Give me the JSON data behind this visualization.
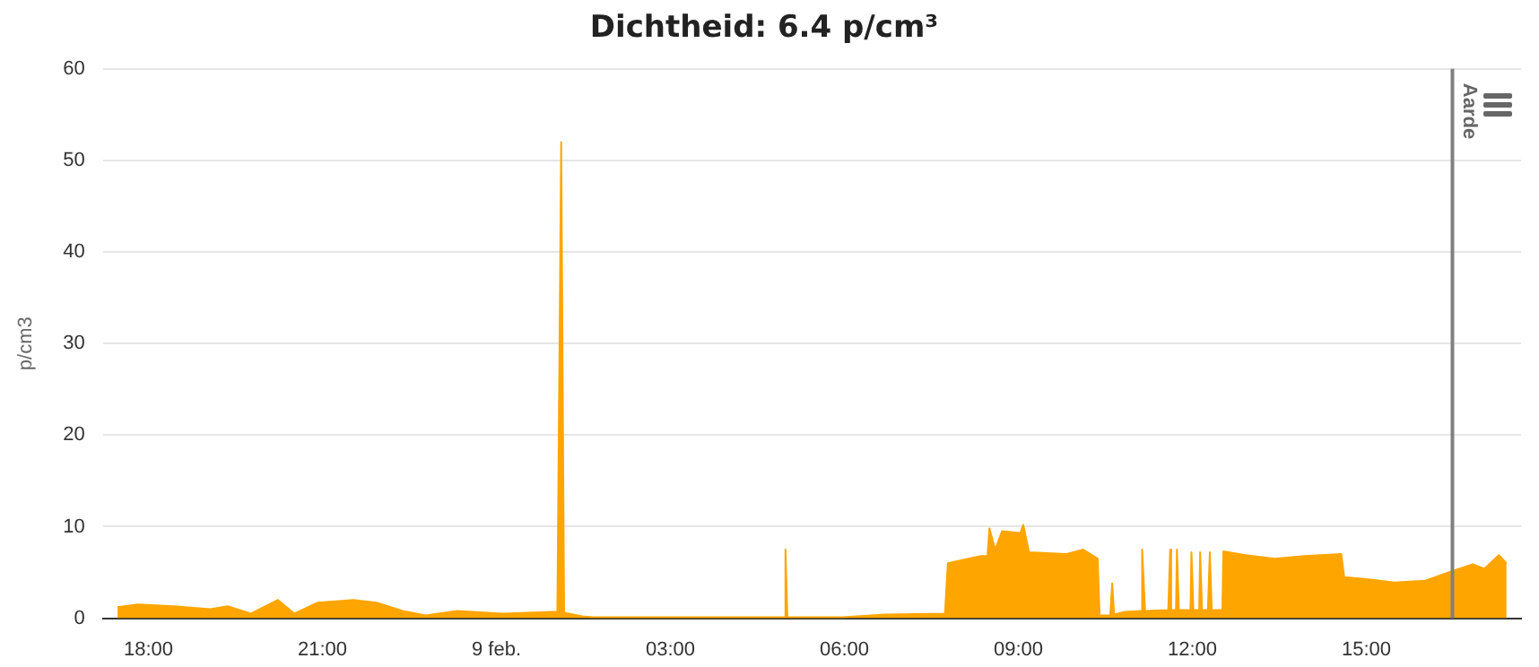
{
  "chart_data": {
    "type": "area",
    "title": "Dichtheid: 6.4 p/cm³",
    "ylabel": "p/cm3",
    "x": [
      "--02-08T17:28",
      "--02-08T17:49",
      "--02-08T18:26",
      "--02-08T19:04",
      "--02-08T19:22",
      "--02-08T19:46",
      "--02-08T20:14",
      "--02-08T20:31",
      "--02-08T20:55",
      "--02-08T21:32",
      "--02-08T21:56",
      "--02-08T22:23",
      "--02-08T22:47",
      "--02-08T23:19",
      "--02-09T00:07",
      "--02-09T00:58",
      "--02-09T01:03",
      "--02-09T01:07",
      "--02-09T01:10",
      "--02-09T01:29",
      "--02-09T01:40",
      "--02-09T02:59",
      "--02-09T04:58",
      "--02-09T04:59",
      "--02-09T05:01",
      "--02-09T05:58",
      "--02-09T06:42",
      "--02-09T07:44",
      "--02-09T07:47",
      "--02-09T08:21",
      "--02-09T08:28",
      "--02-09T08:30",
      "--02-09T08:36",
      "--02-09T08:43",
      "--02-09T09:02",
      "--02-09T09:05",
      "--02-09T09:11",
      "--02-09T09:49",
      "--02-09T10:07",
      "--02-09T10:22",
      "--02-09T10:24",
      "--02-09T10:35",
      "--02-09T10:37",
      "--02-09T10:39",
      "--02-09T10:50",
      "--02-09T11:07",
      "--02-09T11:08",
      "--02-09T11:11",
      "--02-09T11:35",
      "--02-09T11:37",
      "--02-09T11:38",
      "--02-09T11:43",
      "--02-09T11:44",
      "--02-09T11:46",
      "--02-09T11:58",
      "--02-09T11:59",
      "--02-09T12:01",
      "--02-09T12:07",
      "--02-09T12:08",
      "--02-09T12:10",
      "--02-09T12:16",
      "--02-09T12:18",
      "--02-09T12:20",
      "--02-09T12:31",
      "--02-09T12:32",
      "--02-09T12:55",
      "--02-09T13:25",
      "--02-09T13:56",
      "--02-09T14:34",
      "--02-09T14:37",
      "--02-09T14:58",
      "--02-09T15:29",
      "--02-09T16:01",
      "--02-09T16:25",
      "--02-09T16:50",
      "--02-09T17:02",
      "--02-09T17:17",
      "--02-09T17:25"
    ],
    "series": [
      {
        "color": "#ffa500",
        "values": [
          1.2,
          1.5,
          1.3,
          1.0,
          1.3,
          0.5,
          2.0,
          0.5,
          1.7,
          2.0,
          1.7,
          0.8,
          0.3,
          0.8,
          0.5,
          0.7,
          0.7,
          52,
          0.6,
          0.2,
          0.1,
          0.1,
          0.1,
          7.5,
          0.1,
          0.1,
          0.4,
          0.5,
          6.0,
          6.8,
          6.8,
          9.8,
          7.5,
          9.5,
          9.3,
          10.2,
          7.2,
          7.0,
          7.5,
          6.5,
          0.3,
          0.3,
          3.8,
          0.4,
          0.7,
          0.8,
          7.5,
          0.8,
          0.9,
          7.5,
          0.9,
          0.9,
          7.5,
          0.9,
          0.9,
          7.2,
          0.9,
          0.9,
          7.2,
          0.9,
          0.9,
          7.2,
          0.9,
          0.9,
          7.3,
          6.9,
          6.5,
          6.8,
          7.0,
          4.5,
          4.3,
          3.9,
          4.1,
          5.0,
          5.9,
          5.4,
          6.9,
          6.0
        ]
      }
    ],
    "xlim": [
      "--02-08T17:13",
      "--02-09T17:40"
    ],
    "xticks": [
      {
        "value": "--02-08T18:00",
        "label": "18:00"
      },
      {
        "value": "--02-08T21:00",
        "label": "21:00"
      },
      {
        "value": "--02-09T00:00",
        "label": "9 feb."
      },
      {
        "value": "--02-09T03:00",
        "label": "03:00"
      },
      {
        "value": "--02-09T06:00",
        "label": "06:00"
      },
      {
        "value": "--02-09T09:00",
        "label": "09:00"
      },
      {
        "value": "--02-09T12:00",
        "label": "12:00"
      },
      {
        "value": "--02-09T15:00",
        "label": "15:00"
      }
    ],
    "ylim": [
      0,
      60
    ],
    "yticks": [
      0,
      10,
      20,
      30,
      40,
      50,
      60
    ],
    "ref_lines": [
      {
        "axis": "x",
        "value": "--02-09T16:29",
        "label": "Aarde",
        "color": "#808080"
      }
    ],
    "grid": "y",
    "legend": false
  }
}
